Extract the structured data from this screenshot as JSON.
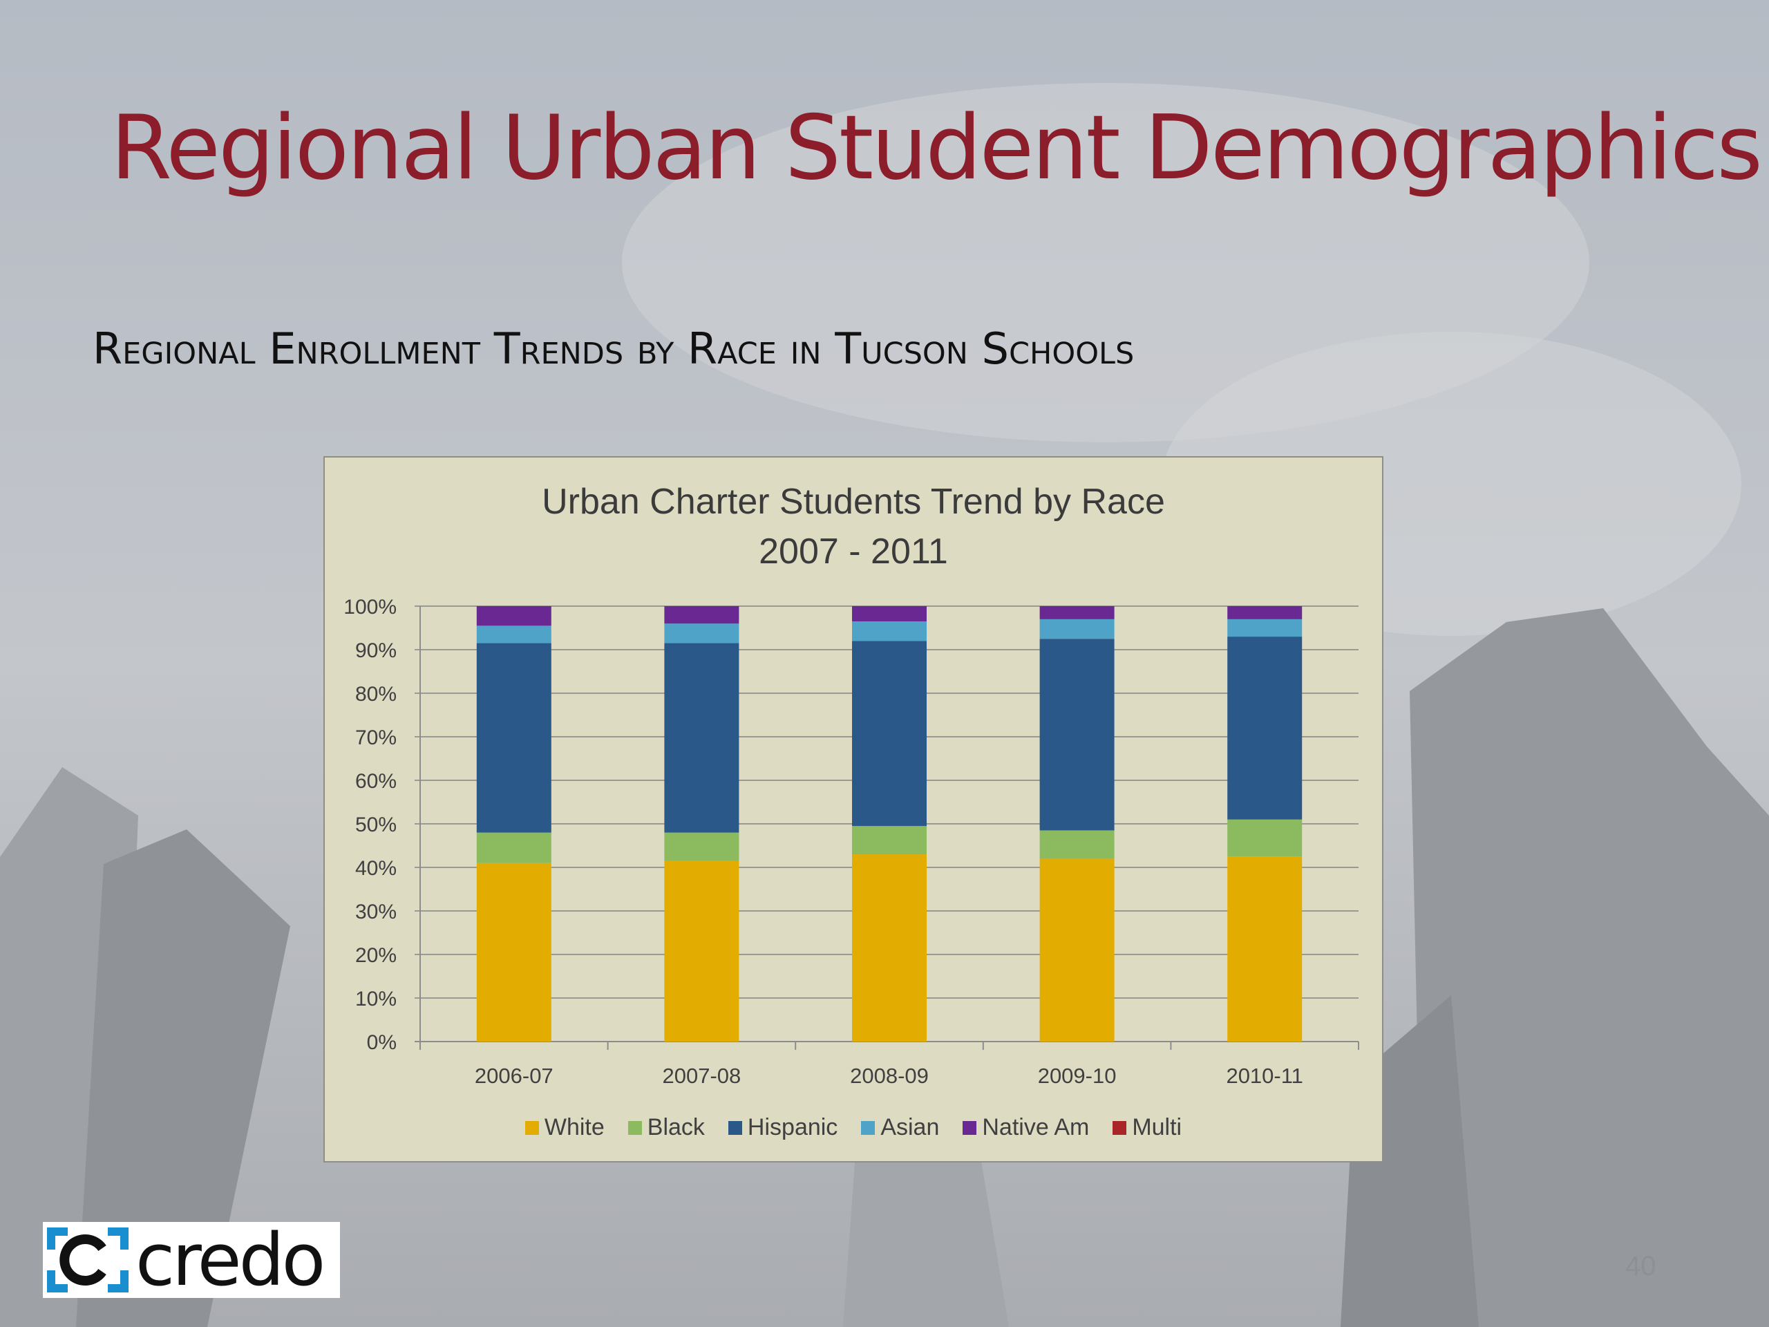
{
  "slide": {
    "title": "Regional Urban Student Demographics",
    "subtitle": "Regional Enrollment Trends by Race in Tucson Schools",
    "page_number": "40",
    "logo_text": "credo"
  },
  "colors": {
    "title": "#8c1d2a",
    "White": "#e3ac00",
    "Black": "#8cba5f",
    "Hispanic": "#2a5888",
    "Asian": "#4fa2c8",
    "Native Am": "#6a2893",
    "Multi": "#a8262a",
    "logo_accent": "#1a8fd0"
  },
  "chart_data": {
    "type": "bar",
    "stacked": true,
    "title": "Urban Charter Students Trend by Race",
    "subtitle": "2007 - 2011",
    "categories": [
      "2006-07",
      "2007-08",
      "2008-09",
      "2009-10",
      "2010-11"
    ],
    "ylim": [
      0,
      100
    ],
    "yticks": [
      "0%",
      "10%",
      "20%",
      "30%",
      "40%",
      "50%",
      "60%",
      "70%",
      "80%",
      "90%",
      "100%"
    ],
    "grid": true,
    "legend_position": "bottom",
    "series": [
      {
        "name": "White",
        "values": [
          41,
          41.5,
          43,
          42,
          42.5
        ]
      },
      {
        "name": "Black",
        "values": [
          7,
          6.5,
          6.5,
          6.5,
          8.5
        ]
      },
      {
        "name": "Hispanic",
        "values": [
          43.5,
          43.5,
          42.5,
          44,
          42
        ]
      },
      {
        "name": "Asian",
        "values": [
          4,
          4.5,
          4.5,
          4.5,
          4
        ]
      },
      {
        "name": "Native Am",
        "values": [
          4.5,
          4,
          3.5,
          3,
          3
        ]
      },
      {
        "name": "Multi",
        "values": [
          0,
          0,
          0,
          0,
          0
        ]
      }
    ]
  }
}
